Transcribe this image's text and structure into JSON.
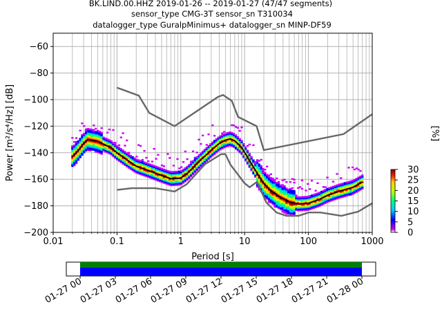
{
  "title_lines": [
    "BK.LIND.00.HHZ   2019-01-26 -- 2019-01-27  (47/47 segments)",
    "sensor_type CMG-3T sensor_sn T310034",
    "datalogger_type GuralpMinimus+ datalogger_sn MINP-DF59"
  ],
  "chart_data": {
    "type": "heatmap",
    "xlabel": "Period [s]",
    "ylabel": "Power [m²/s⁴/Hz] [dB]",
    "xscale": "log",
    "xlim": [
      0.01,
      1000
    ],
    "ylim": [
      -200,
      -50
    ],
    "x_ticks": [
      {
        "value": 0.01,
        "label": "0.01"
      },
      {
        "value": 0.1,
        "label": "0.1"
      },
      {
        "value": 1,
        "label": "1"
      },
      {
        "value": 10,
        "label": "10"
      },
      {
        "value": 100,
        "label": "100"
      },
      {
        "value": 1000,
        "label": "1000"
      }
    ],
    "y_ticks": [
      -60,
      -80,
      -100,
      -120,
      -140,
      -160,
      -180,
      -200
    ],
    "grid": true,
    "colorbar": {
      "label": "[%]",
      "min": 0,
      "max": 30,
      "ticks": [
        0,
        5,
        10,
        15,
        20,
        25,
        30
      ]
    },
    "series": [
      {
        "role": "noise-model-high",
        "points": [
          [
            0.1,
            -91
          ],
          [
            0.22,
            -97
          ],
          [
            0.32,
            -110
          ],
          [
            0.8,
            -120
          ],
          [
            3.8,
            -98
          ],
          [
            4.6,
            -96.5
          ],
          [
            6.3,
            -101
          ],
          [
            7.9,
            -113
          ],
          [
            15.4,
            -120
          ],
          [
            20,
            -138
          ],
          [
            354,
            -126
          ],
          [
            1000,
            -111
          ]
        ]
      },
      {
        "role": "noise-model-low",
        "points": [
          [
            0.1,
            -168
          ],
          [
            0.17,
            -166.7
          ],
          [
            0.4,
            -166.7
          ],
          [
            0.8,
            -169.2
          ],
          [
            1.24,
            -163.7
          ],
          [
            2.4,
            -148.6
          ],
          [
            4.3,
            -141.1
          ],
          [
            5,
            -141.1
          ],
          [
            6,
            -149
          ],
          [
            10,
            -163
          ],
          [
            12,
            -166
          ],
          [
            15.6,
            -162
          ],
          [
            21.9,
            -177.5
          ],
          [
            31.6,
            -185
          ],
          [
            45,
            -187.5
          ],
          [
            70,
            -187.5
          ],
          [
            101,
            -185
          ],
          [
            154,
            -185
          ],
          [
            328,
            -187.5
          ],
          [
            600,
            -184.4
          ],
          [
            1000,
            -178
          ]
        ]
      },
      {
        "role": "mean",
        "points": [
          [
            0.02,
            -143
          ],
          [
            0.025,
            -138
          ],
          [
            0.03,
            -133
          ],
          [
            0.035,
            -130
          ],
          [
            0.05,
            -131.5
          ],
          [
            0.08,
            -136
          ],
          [
            0.1,
            -140
          ],
          [
            0.15,
            -146
          ],
          [
            0.2,
            -150
          ],
          [
            0.3,
            -153
          ],
          [
            0.5,
            -157
          ],
          [
            0.7,
            -159.5
          ],
          [
            1,
            -159
          ],
          [
            1.3,
            -155
          ],
          [
            2,
            -146
          ],
          [
            3,
            -138
          ],
          [
            4,
            -133
          ],
          [
            5,
            -130.5
          ],
          [
            6,
            -129.5
          ],
          [
            7,
            -131
          ],
          [
            9,
            -136
          ],
          [
            12,
            -146
          ],
          [
            16,
            -156
          ],
          [
            20,
            -163
          ],
          [
            25,
            -168
          ],
          [
            35,
            -173
          ],
          [
            50,
            -177
          ],
          [
            70,
            -178.5
          ],
          [
            100,
            -178
          ],
          [
            150,
            -175
          ],
          [
            200,
            -172
          ],
          [
            300,
            -169
          ],
          [
            500,
            -166
          ],
          [
            700,
            -162
          ]
        ]
      }
    ],
    "time_axis": {
      "ticks": [
        "01-27 00",
        "01-27 03",
        "01-27 06",
        "01-27 09",
        "01-27 12",
        "01-27 15",
        "01-27 18",
        "01-27 21",
        "01-28 00"
      ],
      "bars": [
        {
          "role": "data",
          "color": "#008000"
        },
        {
          "role": "used",
          "color": "#0000ff"
        }
      ]
    }
  }
}
